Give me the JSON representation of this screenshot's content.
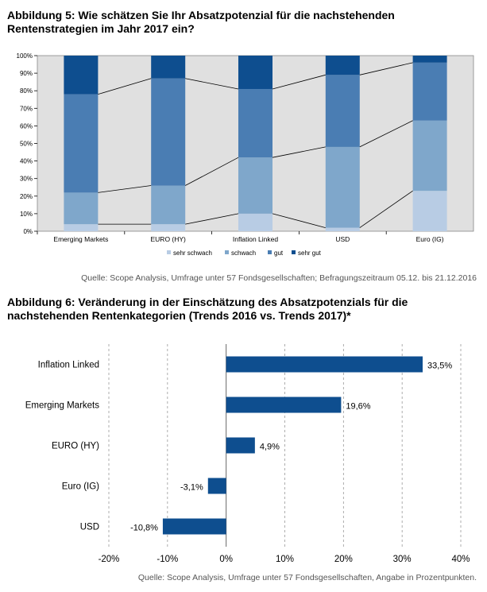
{
  "figure5": {
    "title": "Abbildung 5: Wie schätzen Sie Ihr Absatzpotenzial für die nachstehenden Rentenstrategien im Jahr 2017 ein?",
    "source": "Quelle: Scope Analysis, Umfrage unter 57 Fondsgesellschaften; Befragungszeitraum  05.12. bis 21.12.2016"
  },
  "figure6": {
    "title": "Abbildung 6: Veränderung in der Einschätzung des Absatzpotenzials für die nachstehenden Rentenkategorien (Trends 2016 vs. Trends 2017)*",
    "source": "Quelle: Scope Analysis, Umfrage unter 57 Fondsgesellschaften, Angabe in Prozentpunkten."
  },
  "chart_data": [
    {
      "type": "bar",
      "stacked": true,
      "percent_stacked": true,
      "categories": [
        "Emerging Markets",
        "EURO (HY)",
        "Inflation Linked",
        "USD",
        "Euro (IG)"
      ],
      "series": [
        {
          "name": "sehr schwach",
          "color": "#b8cce4",
          "values": [
            4,
            4,
            10,
            2,
            23
          ]
        },
        {
          "name": "schwach",
          "color": "#7fa7cb",
          "values": [
            18,
            22,
            32,
            46,
            40
          ]
        },
        {
          "name": "gut",
          "color": "#4a7db3",
          "values": [
            56,
            61,
            39,
            41,
            33
          ]
        },
        {
          "name": "sehr gut",
          "color": "#0e4e8f",
          "values": [
            22,
            13,
            19,
            11,
            4
          ]
        }
      ],
      "yticks": [
        "0%",
        "10%",
        "20%",
        "30%",
        "40%",
        "50%",
        "60%",
        "70%",
        "80%",
        "90%",
        "100%"
      ],
      "ylim": [
        0,
        100
      ],
      "series_lines": true,
      "legend_position": "bottom",
      "background": "#e0e0e0",
      "grid": false
    },
    {
      "type": "bar",
      "orientation": "horizontal",
      "categories": [
        "Inflation Linked",
        "Emerging Markets",
        "EURO (HY)",
        "Euro (IG)",
        "USD"
      ],
      "values": [
        33.5,
        19.6,
        4.9,
        -3.1,
        -10.8
      ],
      "data_labels": [
        "33,5%",
        "19,6%",
        "4,9%",
        "-3,1%",
        "-10,8%"
      ],
      "xticks": [
        "-20%",
        "-10%",
        "0%",
        "10%",
        "20%",
        "30%",
        "40%"
      ],
      "xlim": [
        -20,
        40
      ],
      "bar_color": "#0e4e8f",
      "grid": "vertical-dashed"
    }
  ]
}
